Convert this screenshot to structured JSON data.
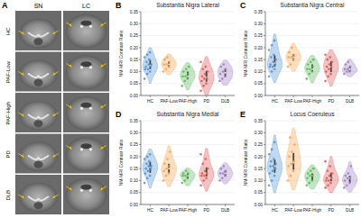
{
  "panel_a": {
    "panel_label": "A",
    "columns": [
      "SN",
      "LC"
    ],
    "rows": [
      "HC",
      "PAF-Low",
      "PAF-High",
      "PD",
      "DLB"
    ]
  },
  "chart_data": [
    {
      "type": "violin",
      "panel_label": "B",
      "title": "Substantia Nigra Lateral",
      "y_label": "NM-MRI Contrast Ratio",
      "categories": [
        "HC",
        "PAF-Low",
        "PAF-High",
        "PD",
        "DLB"
      ],
      "colors": [
        "#4c8fcf",
        "#f5a04a",
        "#55b555",
        "#d9534f",
        "#9d7cc4"
      ],
      "values": [
        [
          0.07,
          0.09,
          0.1,
          0.11,
          0.11,
          0.12,
          0.12,
          0.13,
          0.13,
          0.14,
          0.15,
          0.16,
          0.17,
          0.18
        ],
        [
          0.1,
          0.11,
          0.12,
          0.13,
          0.13,
          0.14,
          0.15,
          0.16
        ],
        [
          0.04,
          0.06,
          0.07,
          0.08,
          0.08,
          0.09,
          0.1,
          0.11,
          0.12
        ],
        [
          0.02,
          0.04,
          0.05,
          0.06,
          0.07,
          0.07,
          0.08,
          0.09,
          0.1,
          0.11,
          0.12,
          0.14
        ],
        [
          0.06,
          0.07,
          0.08,
          0.09,
          0.1,
          0.11,
          0.12,
          0.13
        ]
      ],
      "ylim": [
        0,
        0.35
      ],
      "yticks": [
        {
          "value": 0,
          "label": "0.00"
        },
        {
          "value": 0.05,
          "label": "0.05"
        },
        {
          "value": 0.1,
          "label": "0.10"
        },
        {
          "value": 0.15,
          "label": "0.15"
        },
        {
          "value": 0.2,
          "label": "0.20"
        },
        {
          "value": 0.25,
          "label": "0.25"
        },
        {
          "value": 0.3,
          "label": "0.30"
        },
        {
          "value": 0.35,
          "label": "0.35"
        }
      ],
      "grid": true
    },
    {
      "type": "violin",
      "panel_label": "C",
      "title": "Substantia Nigra Central",
      "y_label": "NM-MRI Contrast Ratio",
      "categories": [
        "HC",
        "PAF-Low",
        "PAF-High",
        "PD",
        "DLB"
      ],
      "colors": [
        "#4c8fcf",
        "#f5a04a",
        "#55b555",
        "#d9534f",
        "#9d7cc4"
      ],
      "values": [
        [
          0.08,
          0.1,
          0.11,
          0.12,
          0.12,
          0.13,
          0.13,
          0.14,
          0.15,
          0.16,
          0.17,
          0.19,
          0.21,
          0.23
        ],
        [
          0.12,
          0.13,
          0.15,
          0.16,
          0.16,
          0.17,
          0.18,
          0.2
        ],
        [
          0.07,
          0.09,
          0.1,
          0.11,
          0.11,
          0.12,
          0.13,
          0.14,
          0.15
        ],
        [
          0.06,
          0.08,
          0.09,
          0.1,
          0.11,
          0.12,
          0.12,
          0.13,
          0.14,
          0.15,
          0.16,
          0.17
        ],
        [
          0.09,
          0.1,
          0.1,
          0.11,
          0.11,
          0.12,
          0.13,
          0.14
        ]
      ],
      "ylim": [
        0,
        0.35
      ],
      "yticks": [
        {
          "value": 0,
          "label": "0.00"
        },
        {
          "value": 0.05,
          "label": "0.05"
        },
        {
          "value": 0.1,
          "label": "0.10"
        },
        {
          "value": 0.15,
          "label": "0.15"
        },
        {
          "value": 0.2,
          "label": "0.20"
        },
        {
          "value": 0.25,
          "label": "0.25"
        },
        {
          "value": 0.3,
          "label": "0.30"
        },
        {
          "value": 0.35,
          "label": "0.35"
        }
      ],
      "grid": true
    },
    {
      "type": "violin",
      "panel_label": "D",
      "title": "Substantia Nigra Medial",
      "y_label": "NM-MRI Contrast Ratio",
      "categories": [
        "HC",
        "PAF-Low",
        "PAF-High",
        "PD",
        "DLB"
      ],
      "colors": [
        "#4c8fcf",
        "#f5a04a",
        "#55b555",
        "#d9534f",
        "#9d7cc4"
      ],
      "values": [
        [
          0.09,
          0.11,
          0.12,
          0.13,
          0.14,
          0.15,
          0.15,
          0.16,
          0.16,
          0.17,
          0.18,
          0.19,
          0.2,
          0.21
        ],
        [
          0.1,
          0.12,
          0.13,
          0.14,
          0.15,
          0.16,
          0.17,
          0.19,
          0.22
        ],
        [
          0.09,
          0.1,
          0.11,
          0.12,
          0.12,
          0.13,
          0.13,
          0.14
        ],
        [
          0.08,
          0.1,
          0.11,
          0.12,
          0.12,
          0.13,
          0.13,
          0.14,
          0.15,
          0.17,
          0.19,
          0.21
        ],
        [
          0.1,
          0.11,
          0.12,
          0.13,
          0.13,
          0.14,
          0.15,
          0.16
        ]
      ],
      "ylim": [
        0,
        0.35
      ],
      "yticks": [
        {
          "value": 0,
          "label": "0.00"
        },
        {
          "value": 0.05,
          "label": "0.05"
        },
        {
          "value": 0.1,
          "label": "0.10"
        },
        {
          "value": 0.15,
          "label": "0.15"
        },
        {
          "value": 0.2,
          "label": "0.20"
        },
        {
          "value": 0.25,
          "label": "0.25"
        },
        {
          "value": 0.3,
          "label": "0.30"
        },
        {
          "value": 0.35,
          "label": "0.35"
        }
      ],
      "grid": true
    },
    {
      "type": "violin",
      "panel_label": "E",
      "title": "Locus Coeruleus",
      "y_label": "NM-MRI Contrast Ratio",
      "categories": [
        "HC",
        "PAF-Low",
        "PAF-High",
        "PD",
        "DLB"
      ],
      "colors": [
        "#4c8fcf",
        "#f5a04a",
        "#55b555",
        "#d9534f",
        "#9d7cc4"
      ],
      "values": [
        [
          0.08,
          0.1,
          0.12,
          0.13,
          0.14,
          0.15,
          0.16,
          0.16,
          0.17,
          0.18,
          0.19,
          0.21,
          0.23,
          0.26
        ],
        [
          0.1,
          0.12,
          0.14,
          0.16,
          0.17,
          0.18,
          0.2,
          0.22,
          0.25,
          0.28
        ],
        [
          0.08,
          0.09,
          0.1,
          0.11,
          0.12,
          0.12,
          0.13,
          0.14,
          0.15
        ],
        [
          0.07,
          0.08,
          0.09,
          0.1,
          0.1,
          0.11,
          0.11,
          0.12,
          0.13,
          0.14,
          0.16,
          0.18
        ],
        [
          0.07,
          0.08,
          0.09,
          0.1,
          0.11,
          0.11,
          0.12,
          0.13,
          0.16
        ]
      ],
      "ylim": [
        0,
        0.35
      ],
      "yticks": [
        {
          "value": 0,
          "label": "0.00"
        },
        {
          "value": 0.05,
          "label": "0.05"
        },
        {
          "value": 0.1,
          "label": "0.10"
        },
        {
          "value": 0.15,
          "label": "0.15"
        },
        {
          "value": 0.2,
          "label": "0.20"
        },
        {
          "value": 0.25,
          "label": "0.25"
        },
        {
          "value": 0.3,
          "label": "0.30"
        },
        {
          "value": 0.35,
          "label": "0.35"
        }
      ],
      "grid": true
    }
  ]
}
